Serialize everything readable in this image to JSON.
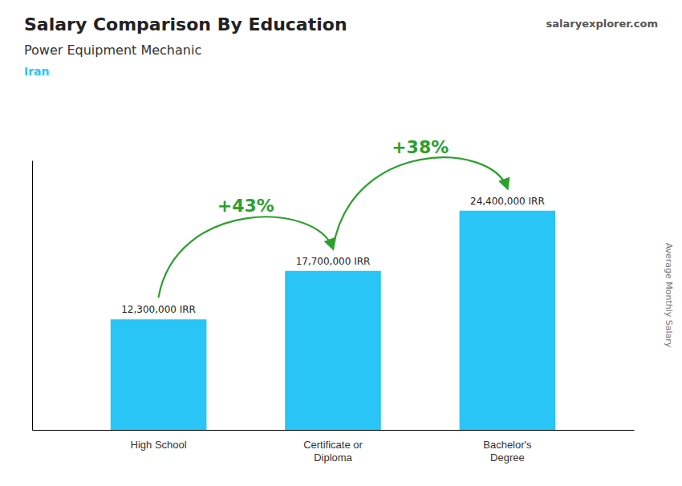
{
  "chart_data": {
    "type": "bar",
    "title": "Salary Comparison By Education",
    "subtitle": "Power Equipment Mechanic",
    "country": "Iran",
    "source": "salaryexplorer.com",
    "ylabel": "Average Monthly Salary",
    "categories": [
      "High School",
      "Certificate or\nDiploma",
      "Bachelor's\nDegree"
    ],
    "values": [
      12300000,
      17700000,
      24400000
    ],
    "value_labels": [
      "12,300,000 IRR",
      "17,700,000 IRR",
      "24,400,000 IRR"
    ],
    "data_labels": true,
    "annotations": [
      "+43%",
      "+38%"
    ],
    "color": "#29c5f6",
    "ylim": [
      0,
      30000000
    ],
    "grid": false,
    "tick_labels": false
  }
}
